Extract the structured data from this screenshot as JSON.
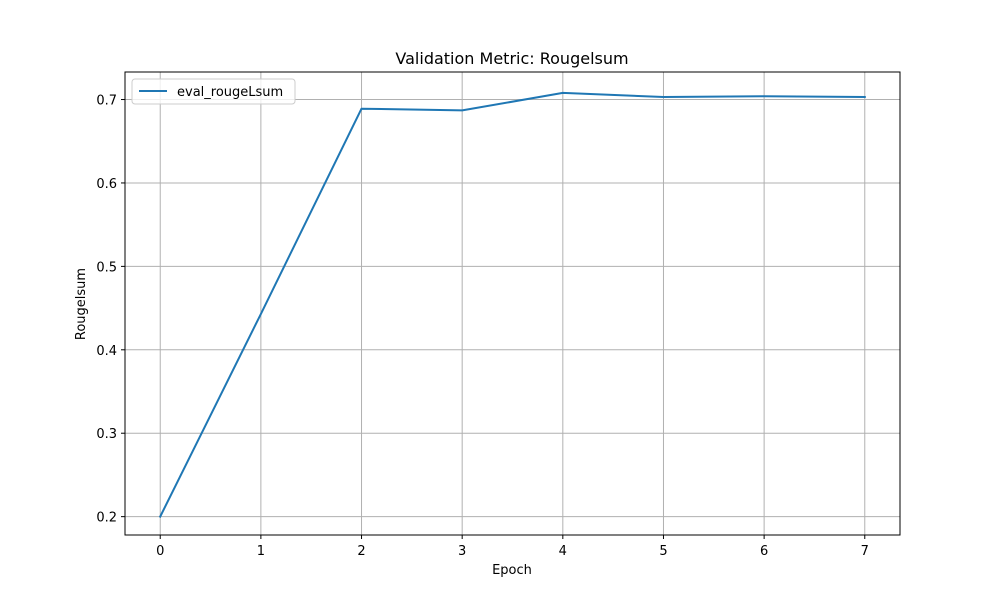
{
  "chart_data": {
    "type": "line",
    "title": "Validation Metric: Rougelsum",
    "xlabel": "Epoch",
    "ylabel": "Rougelsum",
    "xlim": [
      -0.35,
      7.35
    ],
    "ylim": [
      0.178,
      0.733
    ],
    "xticks": [
      0,
      1,
      2,
      3,
      4,
      5,
      6,
      7
    ],
    "yticks": [
      0.2,
      0.3,
      0.4,
      0.5,
      0.6,
      0.7
    ],
    "ytick_labels": [
      "0.2",
      "0.3",
      "0.4",
      "0.5",
      "0.6",
      "0.7"
    ],
    "grid": true,
    "legend_position": "top-left",
    "series": [
      {
        "name": "eval_rougeLsum",
        "color": "#1f77b4",
        "x": [
          0,
          1,
          2,
          3,
          4,
          5,
          6,
          7
        ],
        "y": [
          0.2,
          0.443,
          0.689,
          0.687,
          0.708,
          0.703,
          0.704,
          0.703
        ]
      }
    ]
  }
}
